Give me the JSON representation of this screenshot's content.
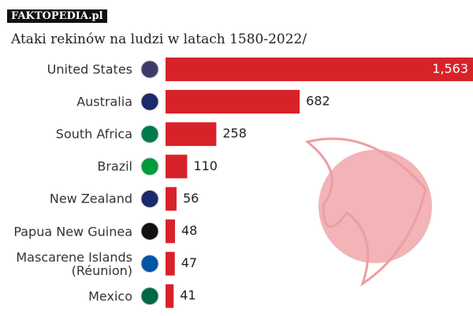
{
  "watermark": "FAKTOPEDIA.pl",
  "chart_data": {
    "type": "bar",
    "orientation": "horizontal",
    "title": "Ataki rekinów na ludzi w latach 1580-2022/",
    "categories": [
      "United States",
      "Australia",
      "South Africa",
      "Brazil",
      "New Zealand",
      "Papua New Guinea",
      "Mascarene Islands\n(Réunion)",
      "Mexico"
    ],
    "values": [
      1563,
      682,
      258,
      110,
      56,
      48,
      47,
      41
    ],
    "value_labels": [
      "1,563",
      "682",
      "258",
      "110",
      "56",
      "48",
      "47",
      "41"
    ],
    "color": "#d7222a"
  }
}
